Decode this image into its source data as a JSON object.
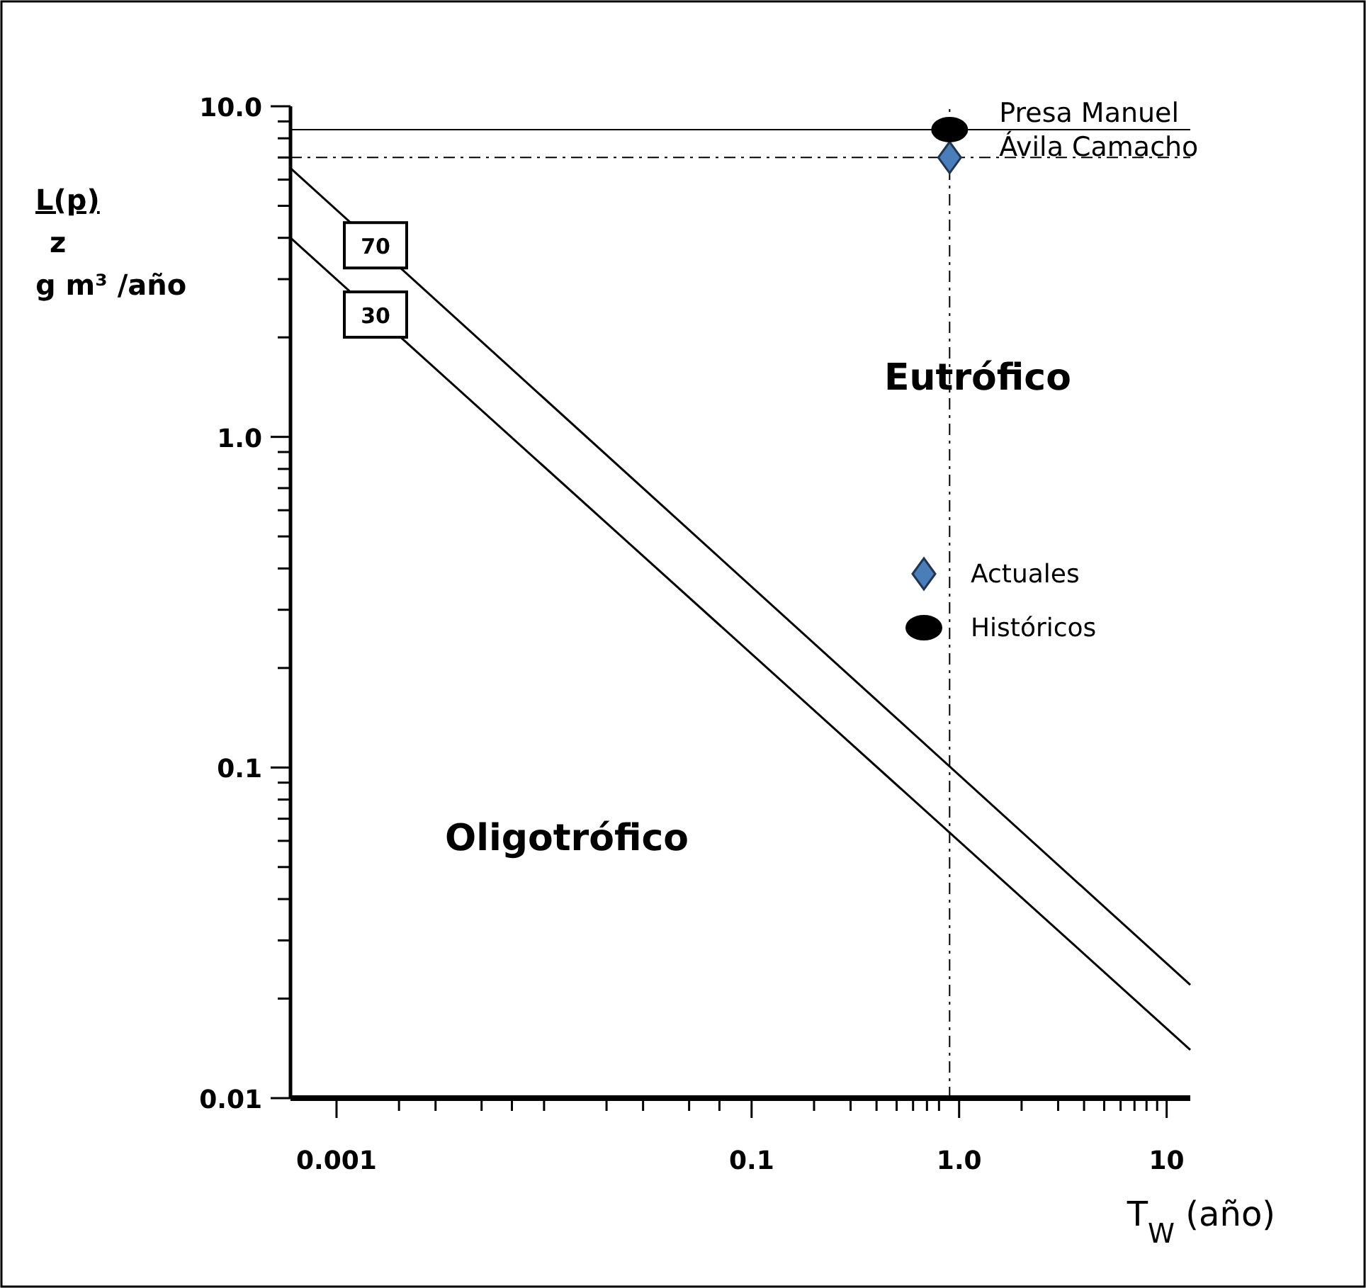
{
  "chart_data": {
    "type": "line",
    "log": "xy",
    "xlabel": "T$_{W}$ (año)",
    "ylabel": "L(p)\nz\ng m³ /año",
    "xlim": [
      0.0006,
      13
    ],
    "ylim": [
      0.01,
      10
    ],
    "xticks": [
      {
        "value": 0.001,
        "label": "0.001"
      },
      {
        "value": 0.002,
        "label": null
      },
      {
        "value": 0.003,
        "label": null
      },
      {
        "value": 0.005,
        "label": null
      },
      {
        "value": 0.007,
        "label": null
      },
      {
        "value": 0.01,
        "label": null
      },
      {
        "value": 0.02,
        "label": null
      },
      {
        "value": 0.03,
        "label": null
      },
      {
        "value": 0.05,
        "label": null
      },
      {
        "value": 0.07,
        "label": null
      },
      {
        "value": 0.1,
        "label": "0.1"
      },
      {
        "value": 0.2,
        "label": null
      },
      {
        "value": 0.3,
        "label": null
      },
      {
        "value": 0.4,
        "label": null
      },
      {
        "value": 0.5,
        "label": null
      },
      {
        "value": 0.6,
        "label": null
      },
      {
        "value": 0.7,
        "label": null
      },
      {
        "value": 0.8,
        "label": null
      },
      {
        "value": 1,
        "label": "1.0"
      },
      {
        "value": 2,
        "label": null
      },
      {
        "value": 3,
        "label": null
      },
      {
        "value": 4,
        "label": null
      },
      {
        "value": 5,
        "label": null
      },
      {
        "value": 6,
        "label": null
      },
      {
        "value": 7,
        "label": null
      },
      {
        "value": 8,
        "label": null
      },
      {
        "value": 9,
        "label": null
      },
      {
        "value": 10,
        "label": "10"
      }
    ],
    "yticks": [
      {
        "value": 0.01,
        "label": "0.01"
      },
      {
        "value": 0.02,
        "label": null
      },
      {
        "value": 0.03,
        "label": null
      },
      {
        "value": 0.04,
        "label": null
      },
      {
        "value": 0.05,
        "label": null
      },
      {
        "value": 0.06,
        "label": null
      },
      {
        "value": 0.07,
        "label": null
      },
      {
        "value": 0.08,
        "label": null
      },
      {
        "value": 0.09,
        "label": null
      },
      {
        "value": 0.1,
        "label": "0.1"
      },
      {
        "value": 0.2,
        "label": null
      },
      {
        "value": 0.3,
        "label": null
      },
      {
        "value": 0.4,
        "label": null
      },
      {
        "value": 0.5,
        "label": null
      },
      {
        "value": 0.6,
        "label": null
      },
      {
        "value": 0.7,
        "label": null
      },
      {
        "value": 0.8,
        "label": null
      },
      {
        "value": 0.9,
        "label": null
      },
      {
        "value": 1,
        "label": "1.0"
      },
      {
        "value": 2,
        "label": null
      },
      {
        "value": 3,
        "label": null
      },
      {
        "value": 4,
        "label": null
      },
      {
        "value": 5,
        "label": null
      },
      {
        "value": 6,
        "label": null
      },
      {
        "value": 7,
        "label": null
      },
      {
        "value": 8,
        "label": null
      },
      {
        "value": 9,
        "label": null
      },
      {
        "value": 10,
        "label": "10.0"
      }
    ],
    "series": [
      {
        "name": "70",
        "color": "#000000",
        "x": [
          0.0006,
          13
        ],
        "values": [
          6.5,
          0.022
        ]
      },
      {
        "name": "30",
        "color": "#000000",
        "x": [
          0.0006,
          13
        ],
        "values": [
          4.0,
          0.014
        ]
      },
      {
        "name": "Actuales",
        "type": "scatter",
        "marker": "diamond",
        "color": "#4a7ebb",
        "x": [
          0.9
        ],
        "values": [
          7
        ]
      },
      {
        "name": "Históricos",
        "type": "scatter",
        "marker": "circle",
        "color": "#000000",
        "x": [
          0.9
        ],
        "values": [
          8.5
        ]
      }
    ],
    "ref_lines": [
      {
        "axis": "y",
        "value": 8.5,
        "line_style": "solid"
      },
      {
        "axis": "y",
        "value": 7,
        "line_style": "dashdot"
      },
      {
        "axis": "x",
        "value": 0.9,
        "line_style": "dashdot"
      }
    ],
    "legend": "right",
    "annotations": [
      {
        "text": "Presa Manuel\nÁvila Camacho",
        "x": 0.9,
        "y": 7
      },
      "Eutrófico",
      "Oligotrófico"
    ]
  }
}
